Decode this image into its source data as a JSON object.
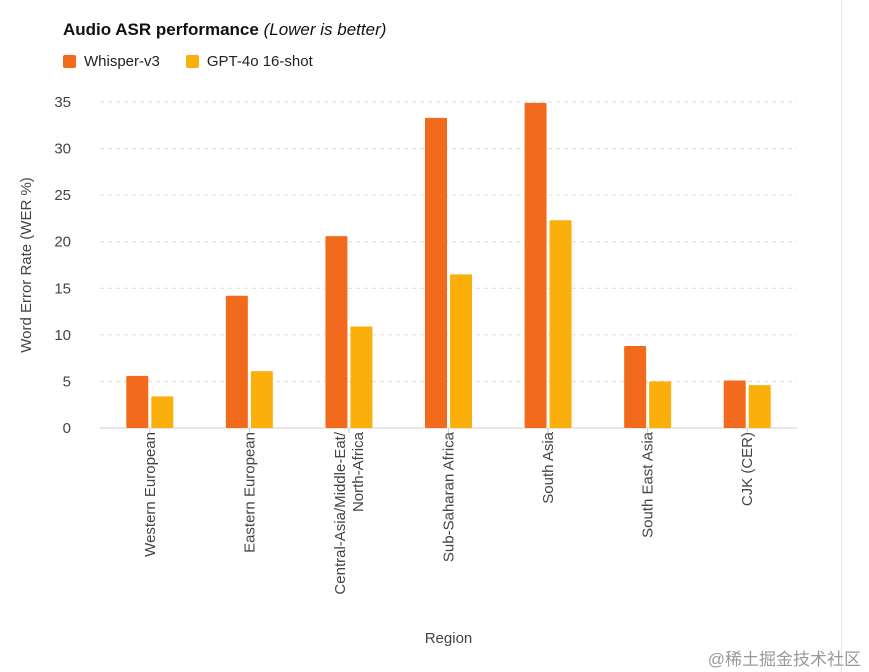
{
  "chart_data": {
    "type": "bar",
    "title": "Audio ASR performance",
    "subtitle": "(Lower is better)",
    "xlabel": "Region",
    "ylabel": "Word Error Rate (WER %)",
    "ylim": [
      0,
      35
    ],
    "yticks": [
      0,
      5,
      10,
      15,
      20,
      25,
      30,
      35
    ],
    "grid": true,
    "legend_position": "top-left",
    "categories": [
      "Western European",
      "Eastern European",
      "Central-Asia/Middle-Eat/\nNorth-Africa",
      "Sub-Saharan Africa",
      "South Asia",
      "South East Asia",
      "CJK (CER)"
    ],
    "series": [
      {
        "name": "Whisper-v3",
        "color": "#f26b1d",
        "values": [
          5.6,
          14.2,
          20.6,
          33.3,
          34.9,
          8.8,
          5.1
        ]
      },
      {
        "name": "GPT-4o 16-shot",
        "color": "#fbaf0a",
        "values": [
          3.4,
          6.1,
          10.9,
          16.5,
          22.3,
          5.0,
          4.6
        ]
      }
    ]
  },
  "watermark": "@稀土掘金技术社区"
}
